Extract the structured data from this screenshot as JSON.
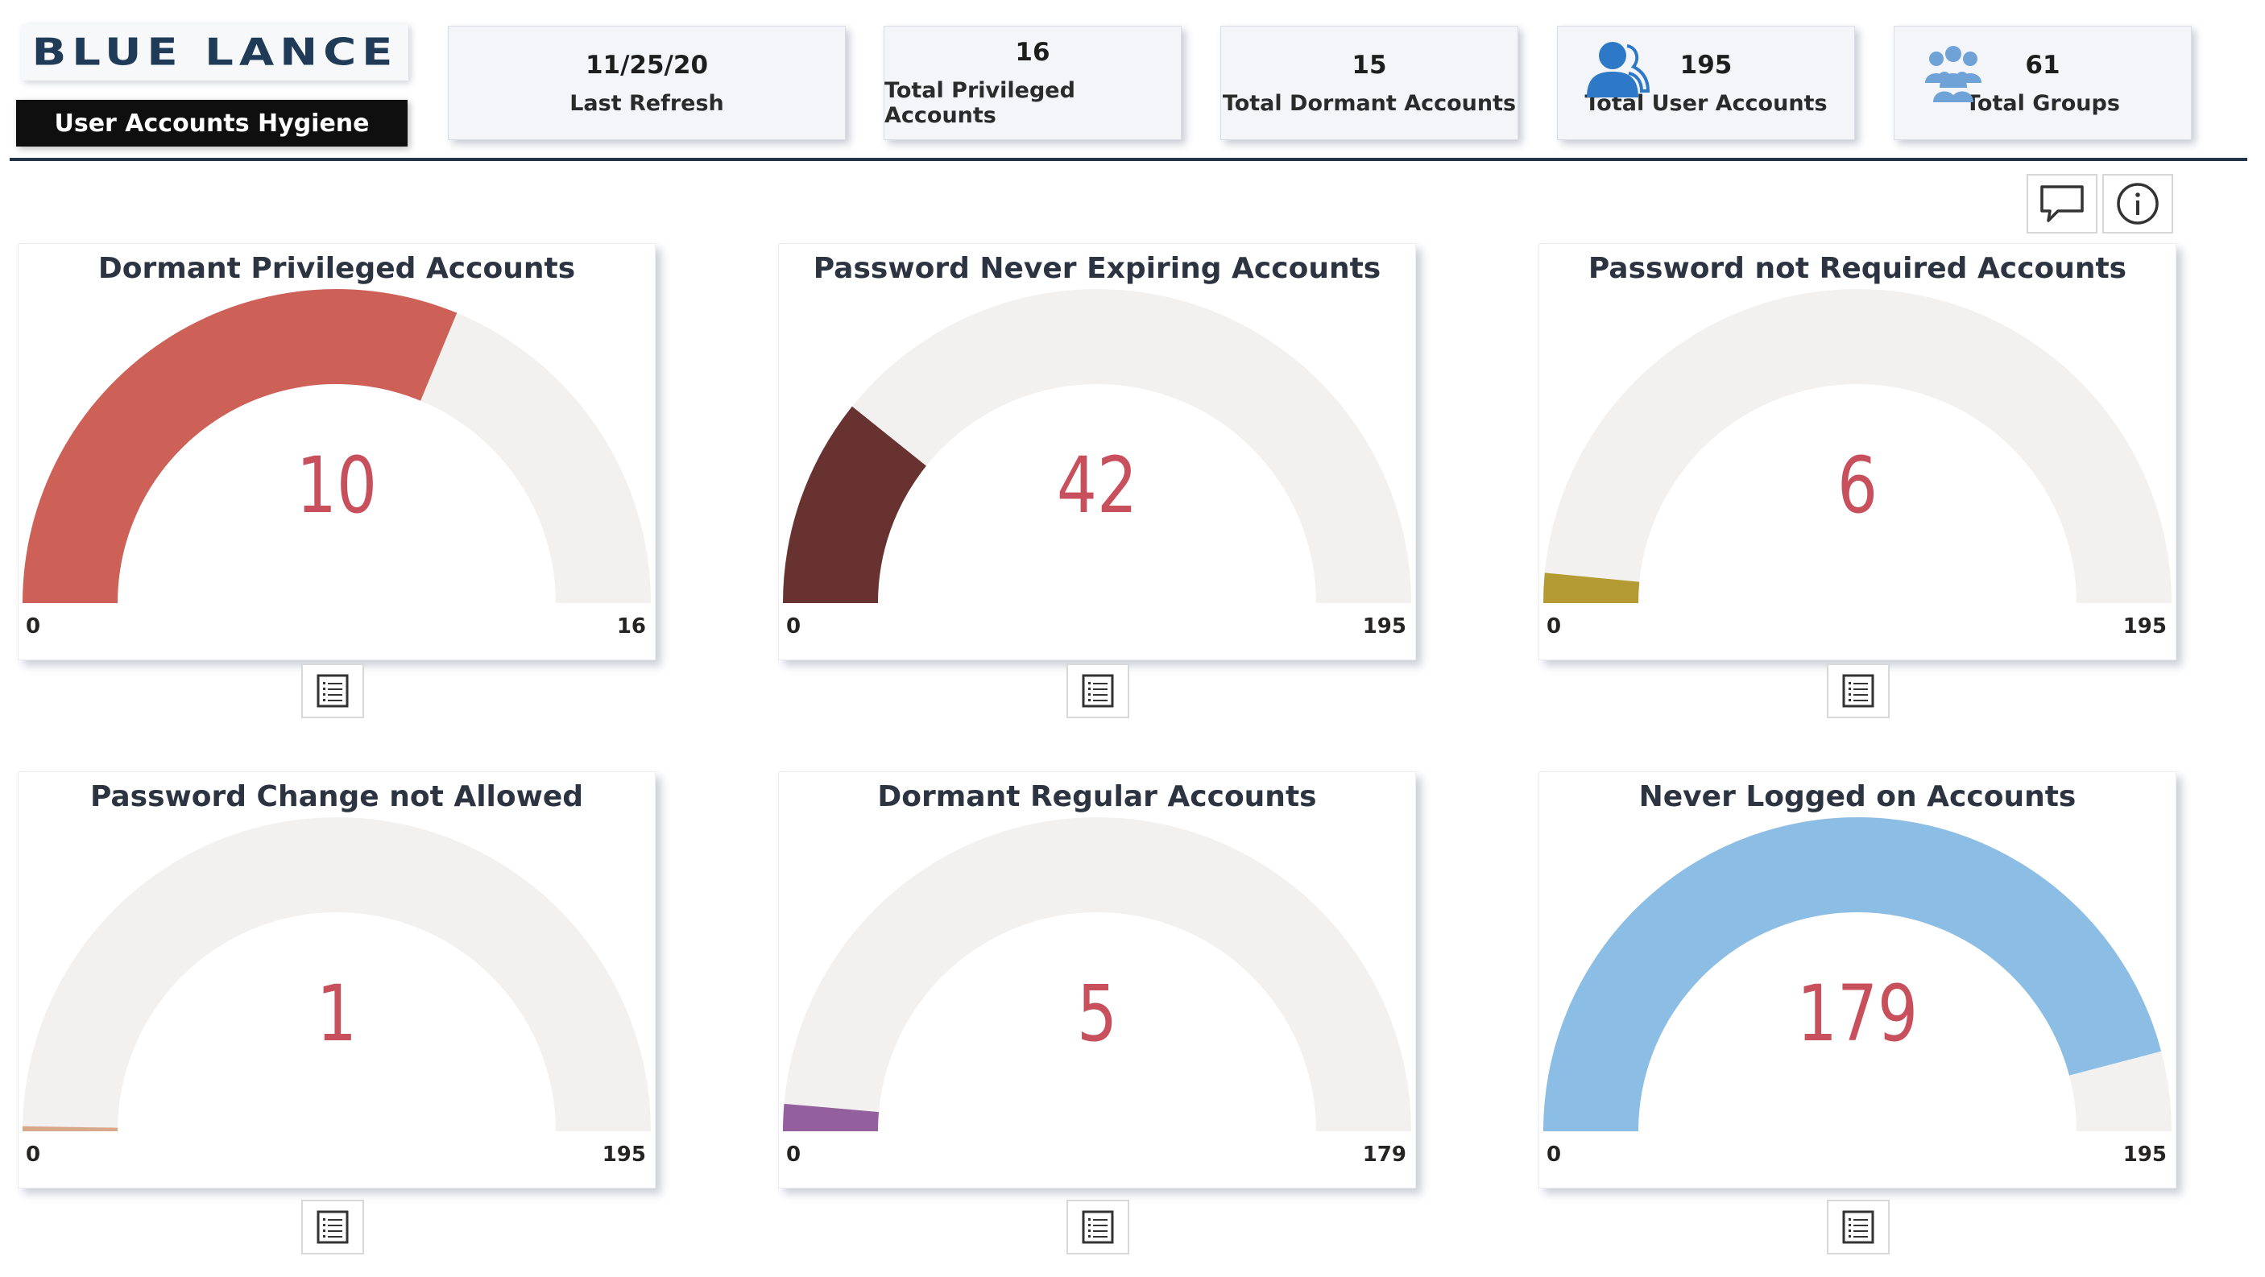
{
  "header": {
    "logo_text": "BLUE LANCE",
    "report_title": "User Accounts Hygiene"
  },
  "kpis": [
    {
      "value": "11/25/20",
      "label": "Last Refresh",
      "icon": ""
    },
    {
      "value": "16",
      "label": "Total Privileged Accounts",
      "icon": ""
    },
    {
      "value": "15",
      "label": "Total Dormant Accounts",
      "icon": ""
    },
    {
      "value": "195",
      "label": "Total User Accounts",
      "icon": "user-icon"
    },
    {
      "value": "61",
      "label": "Total Groups",
      "icon": "group-icon"
    }
  ],
  "toolbar": {
    "comment_icon": "comment-icon",
    "info_icon": "info-icon"
  },
  "chart_data": [
    {
      "type": "gauge",
      "title": "Dormant Privileged Accounts",
      "value": 10,
      "min": 0,
      "max": 16,
      "value_label": "10",
      "min_label": "0",
      "max_label": "16",
      "color": "#cd6158"
    },
    {
      "type": "gauge",
      "title": "Password Never Expiring Accounts",
      "value": 42,
      "min": 0,
      "max": 195,
      "value_label": "42",
      "min_label": "0",
      "max_label": "195",
      "color": "#683230"
    },
    {
      "type": "gauge",
      "title": "Password not Required Accounts",
      "value": 6,
      "min": 0,
      "max": 195,
      "value_label": "6",
      "min_label": "0",
      "max_label": "195",
      "color": "#b49a32"
    },
    {
      "type": "gauge",
      "title": "Password Change not Allowed",
      "value": 1,
      "min": 0,
      "max": 195,
      "value_label": "1",
      "min_label": "0",
      "max_label": "195",
      "color": "#d9a88a"
    },
    {
      "type": "gauge",
      "title": "Dormant Regular Accounts",
      "value": 5,
      "min": 0,
      "max": 179,
      "value_label": "5",
      "min_label": "0",
      "max_label": "179",
      "color": "#935f9c"
    },
    {
      "type": "gauge",
      "title": "Never Logged on Accounts",
      "value": 179,
      "min": 0,
      "max": 195,
      "value_label": "179",
      "min_label": "0",
      "max_label": "195",
      "color": "#8bbde5"
    }
  ],
  "colors": {
    "track": "#f2f1f0",
    "value_text": "#c8505c",
    "header_bar": "#243447"
  }
}
